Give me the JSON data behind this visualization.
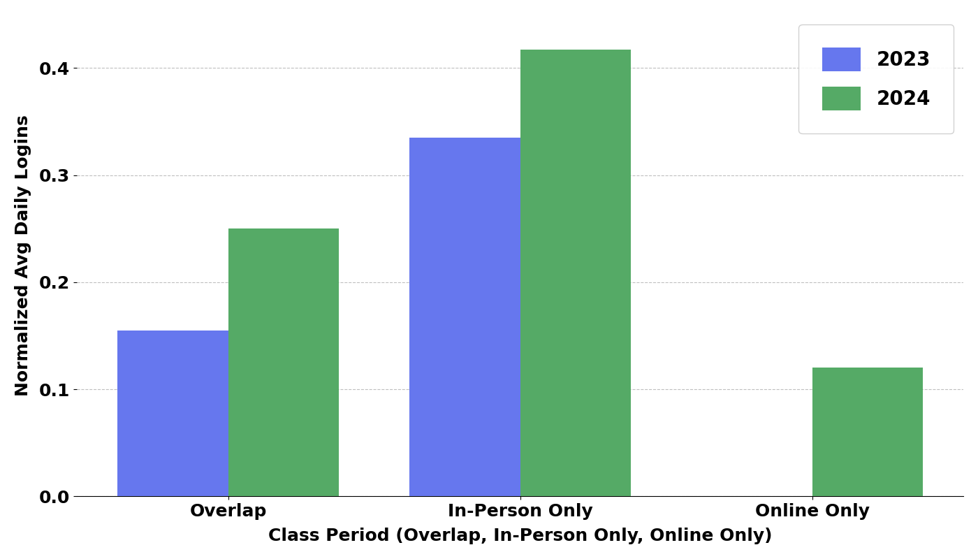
{
  "categories": [
    "Overlap",
    "In-Person Only",
    "Online Only"
  ],
  "values_2023": [
    0.155,
    0.335,
    0.0
  ],
  "values_2024": [
    0.25,
    0.417,
    0.12
  ],
  "color_2023": "#6677ee",
  "color_2024": "#55aa66",
  "ylabel": "Normalized Avg Daily Logins",
  "xlabel": "Class Period (Overlap, In-Person Only, Online Only)",
  "legend_labels": [
    "2023",
    "2024"
  ],
  "ylim": [
    0.0,
    0.45
  ],
  "yticks": [
    0.0,
    0.1,
    0.2,
    0.3,
    0.4
  ],
  "bar_width": 0.38,
  "axis_fontsize": 18,
  "tick_fontsize": 18,
  "legend_fontsize": 20,
  "background_color": "#ffffff"
}
